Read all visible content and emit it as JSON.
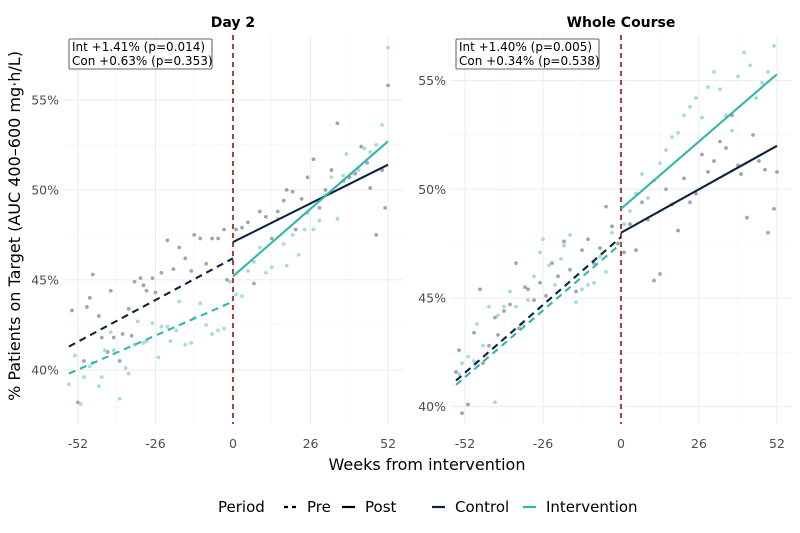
{
  "chart_data": {
    "type": "scatter",
    "xlabel": "Weeks from intervention",
    "ylabel": "% Patients on Target (AUC 400–600 mg·h/L)",
    "x_ticks": [
      -52,
      -26,
      0,
      26,
      52
    ],
    "xlim": [
      -57,
      57
    ],
    "intervention_week": 0,
    "colors": {
      "Control": "#0b2240",
      "Intervention": "#33b5ac",
      "Control_points": "#a0a6ad",
      "Intervention_points": "#a8dcd7",
      "vline": "#a52a2a"
    },
    "legend": {
      "period_title": "Period",
      "period_items": [
        "Pre",
        "Post"
      ],
      "group_items": [
        "Control",
        "Intervention"
      ],
      "placement": "bottom"
    },
    "panels": [
      {
        "title": "Day 2",
        "ylim": [
          37,
          58.6
        ],
        "y_ticks": [
          40,
          45,
          50,
          55
        ],
        "y_tick_labels": [
          "40%",
          "45%",
          "50%",
          "55%"
        ],
        "annotation": [
          "Int +1.41% (p=0.014)",
          "Con +0.63% (p=0.353)"
        ],
        "lines": [
          {
            "series": "Control",
            "period": "Pre",
            "x": [
              -55,
              0
            ],
            "y": [
              41.3,
              46.2
            ]
          },
          {
            "series": "Intervention",
            "period": "Pre",
            "x": [
              -55,
              0
            ],
            "y": [
              39.8,
              43.8
            ]
          },
          {
            "series": "Control",
            "period": "Post",
            "x": [
              0,
              52
            ],
            "y": [
              47.1,
              51.4
            ]
          },
          {
            "series": "Intervention",
            "period": "Post",
            "x": [
              0,
              52
            ],
            "y": [
              45.2,
              52.7
            ]
          }
        ],
        "points": {
          "Control": [
            [
              -54,
              43.3
            ],
            [
              -52,
              38.2
            ],
            [
              -50,
              40.5
            ],
            [
              -49,
              43.5
            ],
            [
              -48,
              44
            ],
            [
              -47,
              45.3
            ],
            [
              -45,
              43
            ],
            [
              -44,
              41.8
            ],
            [
              -42,
              41
            ],
            [
              -41,
              44.4
            ],
            [
              -40,
              41.8
            ],
            [
              -38,
              40.5
            ],
            [
              -37,
              42
            ],
            [
              -35,
              43.4
            ],
            [
              -34,
              41.9
            ],
            [
              -33,
              44.9
            ],
            [
              -31,
              45.1
            ],
            [
              -30,
              44.7
            ],
            [
              -29,
              44.4
            ],
            [
              -27,
              45.1
            ],
            [
              -26,
              44.3
            ],
            [
              -24,
              45.4
            ],
            [
              -22,
              47.2
            ],
            [
              -20,
              45.6
            ],
            [
              -18,
              46.8
            ],
            [
              -16,
              46.2
            ],
            [
              -14,
              45.5
            ],
            [
              -13,
              47.5
            ],
            [
              -11,
              47.3
            ],
            [
              -9,
              45.9
            ],
            [
              -7,
              47.3
            ],
            [
              -5,
              47.3
            ],
            [
              -3,
              47.8
            ],
            [
              -2,
              45
            ],
            [
              1,
              47.8
            ],
            [
              3,
              47.9
            ],
            [
              5,
              48.2
            ],
            [
              7,
              44.8
            ],
            [
              9,
              48.8
            ],
            [
              11,
              48.5
            ],
            [
              13,
              47.3
            ],
            [
              15,
              48.8
            ],
            [
              17,
              49.4
            ],
            [
              18,
              50
            ],
            [
              20,
              49.9
            ],
            [
              21,
              47.8
            ],
            [
              23,
              49.5
            ],
            [
              25,
              50.7
            ],
            [
              27,
              51.7
            ],
            [
              29,
              49
            ],
            [
              31,
              50
            ],
            [
              33,
              51.1
            ],
            [
              35,
              53.7
            ],
            [
              37,
              50.5
            ],
            [
              39,
              50.7
            ],
            [
              41,
              50.9
            ],
            [
              43,
              52.4
            ],
            [
              45,
              51.5
            ],
            [
              46,
              50.1
            ],
            [
              48,
              47.5
            ],
            [
              50,
              51.1
            ],
            [
              51,
              49
            ],
            [
              52,
              55.8
            ]
          ],
          "Intervention": [
            [
              -55,
              39.2
            ],
            [
              -53,
              40.8
            ],
            [
              -51,
              38.1
            ],
            [
              -50,
              39.6
            ],
            [
              -48,
              40.2
            ],
            [
              -47,
              40.4
            ],
            [
              -45,
              39.1
            ],
            [
              -44,
              39.6
            ],
            [
              -43,
              41.1
            ],
            [
              -41,
              42.1
            ],
            [
              -40,
              41.1
            ],
            [
              -38,
              38.4
            ],
            [
              -36,
              40.1
            ],
            [
              -35,
              39.8
            ],
            [
              -33,
              41.4
            ],
            [
              -32,
              42.7
            ],
            [
              -30,
              41.5
            ],
            [
              -29,
              41.6
            ],
            [
              -27,
              42.6
            ],
            [
              -25,
              40.7
            ],
            [
              -24,
              42.4
            ],
            [
              -22,
              42.4
            ],
            [
              -21,
              41.6
            ],
            [
              -19,
              42.2
            ],
            [
              -18,
              43.8
            ],
            [
              -16,
              41.4
            ],
            [
              -14,
              41.5
            ],
            [
              -13,
              42.9
            ],
            [
              -11,
              43.7
            ],
            [
              -9,
              42.5
            ],
            [
              -7,
              42
            ],
            [
              -5,
              42.2
            ],
            [
              -3,
              42.3
            ],
            [
              -1,
              44.9
            ],
            [
              1,
              44.2
            ],
            [
              3,
              44.1
            ],
            [
              5,
              45.5
            ],
            [
              7,
              46
            ],
            [
              9,
              46.8
            ],
            [
              11,
              45.4
            ],
            [
              13,
              45.7
            ],
            [
              15,
              48.4
            ],
            [
              17,
              47
            ],
            [
              18,
              45.8
            ],
            [
              20,
              47.5
            ],
            [
              22,
              46.4
            ],
            [
              24,
              47.8
            ],
            [
              25,
              48.7
            ],
            [
              27,
              47.8
            ],
            [
              29,
              48.3
            ],
            [
              31,
              49.7
            ],
            [
              33,
              50.7
            ],
            [
              35,
              48.4
            ],
            [
              37,
              50.8
            ],
            [
              38,
              52
            ],
            [
              40,
              50.9
            ],
            [
              42,
              51.1
            ],
            [
              44,
              52.3
            ],
            [
              46,
              52.1
            ],
            [
              48,
              52.5
            ],
            [
              50,
              53.6
            ],
            [
              52,
              57.9
            ]
          ]
        }
      },
      {
        "title": "Whole Course",
        "ylim": [
          39.2,
          57.1
        ],
        "y_ticks": [
          40,
          45,
          50,
          55
        ],
        "y_tick_labels": [
          "40%",
          "45%",
          "50%",
          "55%"
        ],
        "annotation": [
          "Int +1.40% (p=0.005)",
          "Con +0.34% (p=0.538)"
        ],
        "lines": [
          {
            "series": "Control",
            "period": "Pre",
            "x": [
              -55,
              0
            ],
            "y": [
              41.2,
              47.8
            ]
          },
          {
            "series": "Intervention",
            "period": "Pre",
            "x": [
              -55,
              0
            ],
            "y": [
              41.0,
              47.5
            ]
          },
          {
            "series": "Control",
            "period": "Post",
            "x": [
              0,
              52
            ],
            "y": [
              48.0,
              52.0
            ]
          },
          {
            "series": "Intervention",
            "period": "Post",
            "x": [
              0,
              52
            ],
            "y": [
              49.1,
              55.3
            ]
          }
        ],
        "points": {
          "Control": [
            [
              -55,
              41.6
            ],
            [
              -54,
              42.6
            ],
            [
              -53,
              39.7
            ],
            [
              -51,
              40.1
            ],
            [
              -49,
              43.4
            ],
            [
              -47,
              45.4
            ],
            [
              -46,
              42
            ],
            [
              -44,
              42.8
            ],
            [
              -42,
              44.1
            ],
            [
              -41,
              43.3
            ],
            [
              -39,
              44.4
            ],
            [
              -37,
              44.7
            ],
            [
              -35,
              46.6
            ],
            [
              -34,
              43.6
            ],
            [
              -32,
              45.5
            ],
            [
              -31,
              45.4
            ],
            [
              -29,
              44.9
            ],
            [
              -27,
              45.7
            ],
            [
              -25,
              45.1
            ],
            [
              -23,
              46.6
            ],
            [
              -21,
              46
            ],
            [
              -19,
              47.6
            ],
            [
              -17,
              46.3
            ],
            [
              -15,
              45.3
            ],
            [
              -13,
              47.2
            ],
            [
              -11,
              47.7
            ],
            [
              -9,
              46.6
            ],
            [
              -7,
              47.3
            ],
            [
              -5,
              49.2
            ],
            [
              -3,
              48.3
            ],
            [
              -1,
              47.5
            ],
            [
              1,
              47.1
            ],
            [
              3,
              48.4
            ],
            [
              5,
              47.2
            ],
            [
              7,
              49.4
            ],
            [
              9,
              48.6
            ],
            [
              11,
              45.8
            ],
            [
              13,
              46.1
            ],
            [
              15,
              50
            ],
            [
              17,
              49.3
            ],
            [
              19,
              48.1
            ],
            [
              21,
              50.5
            ],
            [
              23,
              49.4
            ],
            [
              25,
              49.8
            ],
            [
              27,
              51.6
            ],
            [
              29,
              50.8
            ],
            [
              31,
              51.3
            ],
            [
              33,
              52.2
            ],
            [
              35,
              51.9
            ],
            [
              37,
              53.4
            ],
            [
              39,
              51.1
            ],
            [
              40,
              50.7
            ],
            [
              42,
              48.7
            ],
            [
              44,
              52.5
            ],
            [
              46,
              51.3
            ],
            [
              48,
              50.9
            ],
            [
              49,
              48
            ],
            [
              51,
              49.1
            ],
            [
              52,
              50.8
            ]
          ],
          "Intervention": [
            [
              -54,
              41.5
            ],
            [
              -53,
              42
            ],
            [
              -51,
              42.3
            ],
            [
              -49,
              42.1
            ],
            [
              -48,
              43.8
            ],
            [
              -46,
              42.8
            ],
            [
              -44,
              44.6
            ],
            [
              -42,
              40.2
            ],
            [
              -41,
              44.2
            ],
            [
              -39,
              44.6
            ],
            [
              -37,
              45.3
            ],
            [
              -35,
              44.6
            ],
            [
              -33,
              43.8
            ],
            [
              -31,
              44.9
            ],
            [
              -29,
              46
            ],
            [
              -27,
              47.1
            ],
            [
              -26,
              47.7
            ],
            [
              -24,
              46.5
            ],
            [
              -22,
              45.6
            ],
            [
              -20,
              46.8
            ],
            [
              -19,
              47.4
            ],
            [
              -17,
              47.9
            ],
            [
              -15,
              44.8
            ],
            [
              -13,
              45.4
            ],
            [
              -11,
              45.6
            ],
            [
              -9,
              45.7
            ],
            [
              -7,
              46.9
            ],
            [
              -5,
              46.2
            ],
            [
              -3,
              48
            ],
            [
              1,
              48.4
            ],
            [
              3,
              49
            ],
            [
              5,
              49.8
            ],
            [
              7,
              50.7
            ],
            [
              9,
              49.6
            ],
            [
              11,
              50.4
            ],
            [
              13,
              51.2
            ],
            [
              15,
              51.8
            ],
            [
              17,
              52.4
            ],
            [
              19,
              52.6
            ],
            [
              21,
              53.4
            ],
            [
              23,
              53.8
            ],
            [
              25,
              54.2
            ],
            [
              27,
              53.3
            ],
            [
              29,
              54.7
            ],
            [
              31,
              55.4
            ],
            [
              33,
              54.6
            ],
            [
              35,
              53.4
            ],
            [
              37,
              52.7
            ],
            [
              39,
              55.2
            ],
            [
              41,
              56.3
            ],
            [
              43,
              55.7
            ],
            [
              45,
              54.2
            ],
            [
              47,
              54.9
            ],
            [
              49,
              55.4
            ],
            [
              51,
              56.6
            ]
          ]
        }
      }
    ]
  }
}
